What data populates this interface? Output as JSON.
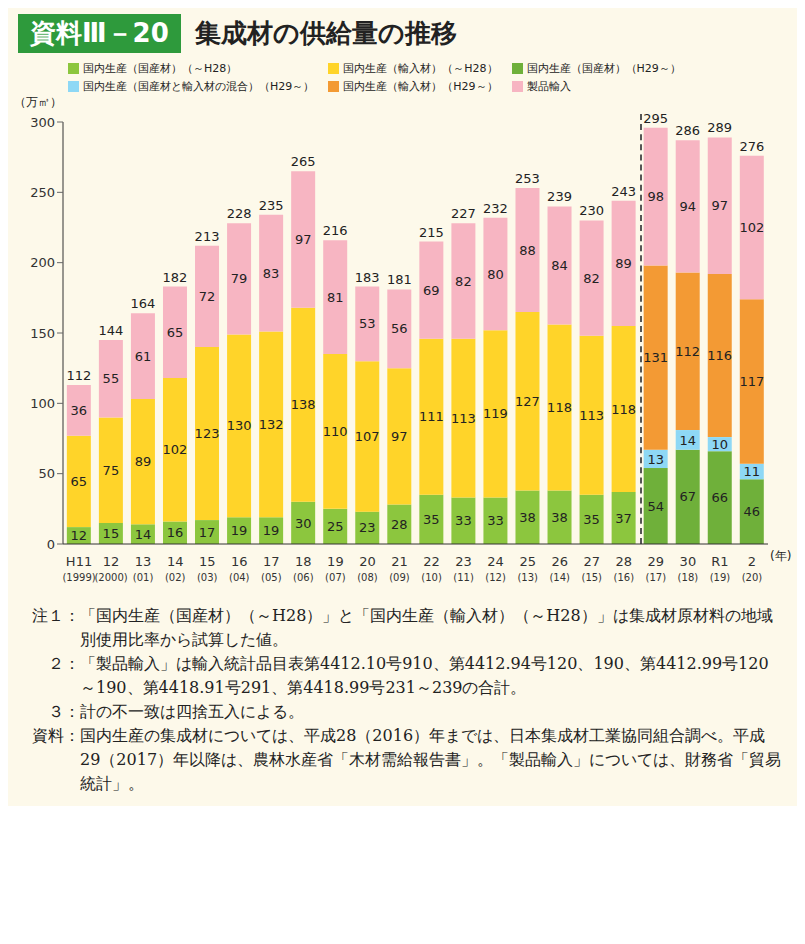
{
  "chart_data": {
    "type": "bar",
    "badge": "資料Ⅲ－20",
    "title": "集成材の供給量の推移",
    "y_unit": "（万㎥）",
    "x_unit": "(年)",
    "categories": [
      "H11",
      "12",
      "13",
      "14",
      "15",
      "16",
      "17",
      "18",
      "19",
      "20",
      "21",
      "22",
      "23",
      "24",
      "25",
      "26",
      "27",
      "28",
      "29",
      "30",
      "R1",
      "2"
    ],
    "category_sublabels": [
      "(1999)",
      "(2000)",
      "(01)",
      "(02)",
      "(03)",
      "(04)",
      "(05)",
      "(06)",
      "(07)",
      "(08)",
      "(09)",
      "(10)",
      "(11)",
      "(12)",
      "(13)",
      "(14)",
      "(15)",
      "(16)",
      "(17)",
      "(18)",
      "(19)",
      "(20)"
    ],
    "series": [
      {
        "name": "国内生産（国産材）（～H28）",
        "color": "#8cc63e",
        "values": [
          12,
          15,
          14,
          16,
          17,
          19,
          19,
          30,
          25,
          23,
          28,
          35,
          33,
          33,
          38,
          38,
          35,
          37,
          null,
          null,
          null,
          null
        ]
      },
      {
        "name": "国内生産（輸入材）（～H28）",
        "color": "#ffd429",
        "values": [
          65,
          75,
          89,
          102,
          123,
          130,
          132,
          138,
          110,
          107,
          97,
          111,
          113,
          119,
          127,
          118,
          113,
          118,
          null,
          null,
          null,
          null
        ]
      },
      {
        "name": "国内生産（国産材）（H29～）",
        "color": "#6fb03a",
        "values": [
          null,
          null,
          null,
          null,
          null,
          null,
          null,
          null,
          null,
          null,
          null,
          null,
          null,
          null,
          null,
          null,
          null,
          null,
          54,
          67,
          66,
          46
        ]
      },
      {
        "name": "国内生産（国産材と輸入材の混合）（H29～）",
        "color": "#8ed8f5",
        "values": [
          null,
          null,
          null,
          null,
          null,
          null,
          null,
          null,
          null,
          null,
          null,
          null,
          null,
          null,
          null,
          null,
          null,
          null,
          13,
          14,
          10,
          11
        ]
      },
      {
        "name": "国内生産（輸入材）（H29～）",
        "color": "#f39a34",
        "values": [
          null,
          null,
          null,
          null,
          null,
          null,
          null,
          null,
          null,
          null,
          null,
          null,
          null,
          null,
          null,
          null,
          null,
          null,
          131,
          112,
          116,
          117
        ]
      },
      {
        "name": "製品輸入",
        "color": "#f7b5c2",
        "values": [
          36,
          55,
          61,
          65,
          72,
          79,
          83,
          97,
          81,
          53,
          56,
          69,
          82,
          80,
          88,
          84,
          82,
          89,
          98,
          94,
          97,
          102
        ]
      }
    ],
    "totals": [
      112,
      144,
      164,
      182,
      213,
      228,
      235,
      265,
      216,
      183,
      181,
      215,
      227,
      232,
      253,
      239,
      230,
      243,
      295,
      286,
      289,
      276
    ],
    "ylim": [
      0,
      300
    ],
    "yticks": [
      0,
      50,
      100,
      150,
      200,
      250,
      300
    ],
    "stacked": true,
    "data_labels": true,
    "grid": false,
    "legend": "top left",
    "notes": [
      {
        "label": "注１：",
        "text": "「国内生産（国産材）（～H28）」と「国内生産（輸入材）（～H28）」は集成材原材料の地域別使用比率から試算した値。"
      },
      {
        "label": "２：",
        "text": "「製品輸入」は輸入統計品目表第4412.10号910、第4412.94号120、190、第4412.99号120～190、第4418.91号291、第4418.99号231～239の合計。"
      },
      {
        "label": "３：",
        "text": "計の不一致は四捨五入による。"
      }
    ],
    "source": {
      "label": "資料：",
      "text": "国内生産の集成材については、平成28（2016）年までは、日本集成材工業協同組合調べ。平成29（2017）年以降は、農林水産省「木材需給報告書」。「製品輸入」については、財務省「貿易統計」。"
    }
  }
}
